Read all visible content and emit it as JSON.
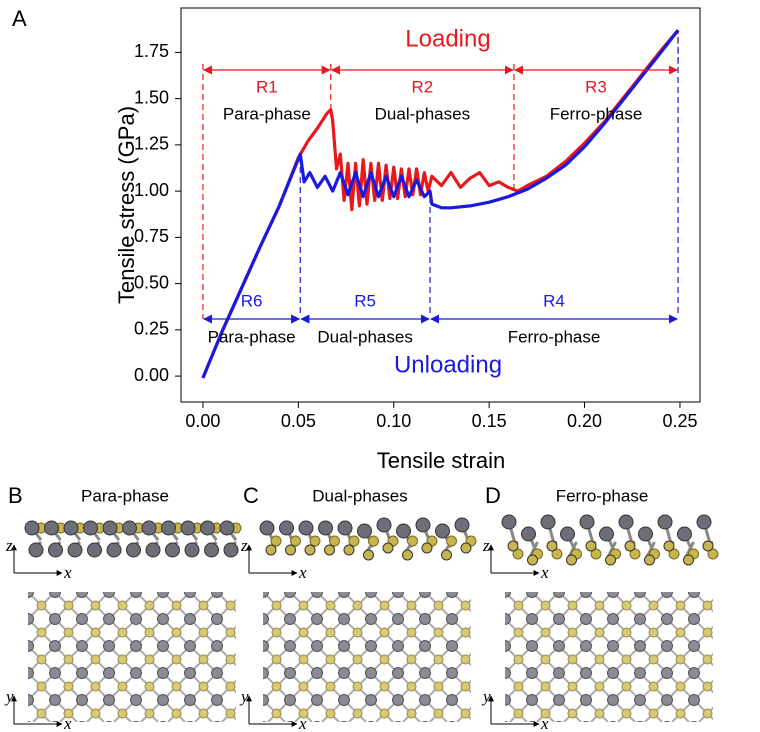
{
  "panel_label": "A",
  "chart_data": {
    "type": "line",
    "xlabel": "Tensile strain",
    "ylabel": "Tensile stress (GPa)",
    "xlim": [
      -0.0115,
      0.2605
    ],
    "ylim": [
      -0.14,
      1.99
    ],
    "xticks": [
      {
        "value": 0,
        "label": "0.00"
      },
      {
        "value": 0.05,
        "label": "0.05"
      },
      {
        "value": 0.1,
        "label": "0.10"
      },
      {
        "value": 0.15,
        "label": "0.15"
      },
      {
        "value": 0.2,
        "label": "0.20"
      },
      {
        "value": 0.25,
        "label": "0.25"
      }
    ],
    "yticks": [
      {
        "value": 0,
        "label": "0.00"
      },
      {
        "value": 0.25,
        "label": "0.25"
      },
      {
        "value": 0.5,
        "label": "0.50"
      },
      {
        "value": 0.75,
        "label": "0.75"
      },
      {
        "value": 1,
        "label": "1.00"
      },
      {
        "value": 1.25,
        "label": "1.25"
      },
      {
        "value": 1.5,
        "label": "1.50"
      },
      {
        "value": 1.75,
        "label": "1.75"
      }
    ],
    "series": [
      {
        "name": "Loading",
        "color": "#e8191c",
        "x": [
          0,
          0.01,
          0.02,
          0.03,
          0.04,
          0.05,
          0.055,
          0.06,
          0.065,
          0.067,
          0.068,
          0.07,
          0.072,
          0.074,
          0.076,
          0.078,
          0.08,
          0.082,
          0.084,
          0.086,
          0.088,
          0.09,
          0.092,
          0.094,
          0.096,
          0.098,
          0.1,
          0.102,
          0.104,
          0.106,
          0.108,
          0.11,
          0.112,
          0.114,
          0.116,
          0.118,
          0.12,
          0.125,
          0.13,
          0.135,
          0.14,
          0.145,
          0.15,
          0.155,
          0.16,
          0.165,
          0.17,
          0.18,
          0.19,
          0.2,
          0.21,
          0.22,
          0.23,
          0.24,
          0.249
        ],
        "values": [
          -0.01,
          0.24,
          0.47,
          0.7,
          0.92,
          1.18,
          1.27,
          1.34,
          1.42,
          1.44,
          1.38,
          1.12,
          1.2,
          0.95,
          1.15,
          0.9,
          1.15,
          0.92,
          1.17,
          0.93,
          1.15,
          0.95,
          1.15,
          0.95,
          1.14,
          0.96,
          1.13,
          0.96,
          1.12,
          0.97,
          1.12,
          0.98,
          1.12,
          0.98,
          1.1,
          1.0,
          1.08,
          1.03,
          1.1,
          1.02,
          1.07,
          1.1,
          1.03,
          1.05,
          1.02,
          1.0,
          1.03,
          1.08,
          1.16,
          1.26,
          1.37,
          1.5,
          1.63,
          1.76,
          1.87
        ]
      },
      {
        "name": "Unloading",
        "color": "#1a1adf",
        "x": [
          0,
          0.01,
          0.02,
          0.03,
          0.04,
          0.051,
          0.053,
          0.056,
          0.06,
          0.064,
          0.068,
          0.072,
          0.076,
          0.08,
          0.084,
          0.088,
          0.092,
          0.096,
          0.1,
          0.104,
          0.108,
          0.112,
          0.116,
          0.119,
          0.12,
          0.125,
          0.13,
          0.14,
          0.15,
          0.16,
          0.17,
          0.18,
          0.19,
          0.2,
          0.21,
          0.22,
          0.23,
          0.24,
          0.249
        ],
        "values": [
          -0.01,
          0.24,
          0.47,
          0.7,
          0.92,
          1.2,
          1.05,
          1.1,
          1.02,
          1.08,
          1.0,
          1.1,
          0.98,
          1.1,
          0.97,
          1.1,
          0.97,
          1.08,
          0.97,
          1.08,
          0.97,
          1.06,
          0.97,
          1.0,
          0.93,
          0.91,
          0.91,
          0.92,
          0.94,
          0.97,
          1.01,
          1.07,
          1.14,
          1.24,
          1.36,
          1.49,
          1.62,
          1.75,
          1.87
        ]
      }
    ],
    "loading_regions": [
      {
        "label": "R1",
        "phase": "Para-phase",
        "x": [
          0,
          0.067
        ]
      },
      {
        "label": "R2",
        "phase": "Dual-phases",
        "x": [
          0.067,
          0.163
        ]
      },
      {
        "label": "R3",
        "phase": "Ferro-phase",
        "x": [
          0.163,
          0.249
        ]
      }
    ],
    "unloading_regions": [
      {
        "label": "R6",
        "phase": "Para-phase",
        "x": [
          0,
          0.051
        ]
      },
      {
        "label": "R5",
        "phase": "Dual-phases",
        "x": [
          0.051,
          0.119
        ]
      },
      {
        "label": "R4",
        "phase": "Ferro-phase",
        "x": [
          0.119,
          0.249
        ]
      }
    ]
  },
  "panels": [
    {
      "label": "B",
      "title": "Para-phase",
      "side_view": {
        "vertical": "z",
        "horizontal": "x"
      },
      "top_view": {
        "vertical": "y",
        "horizontal": "x"
      }
    },
    {
      "label": "C",
      "title": "Dual-phases",
      "side_view": {
        "vertical": "z",
        "horizontal": "x"
      },
      "top_view": {
        "vertical": "y",
        "horizontal": "x"
      }
    },
    {
      "label": "D",
      "title": "Ferro-phase",
      "side_view": {
        "vertical": "z",
        "horizontal": "x"
      },
      "top_view": {
        "vertical": "y",
        "horizontal": "x"
      }
    }
  ]
}
